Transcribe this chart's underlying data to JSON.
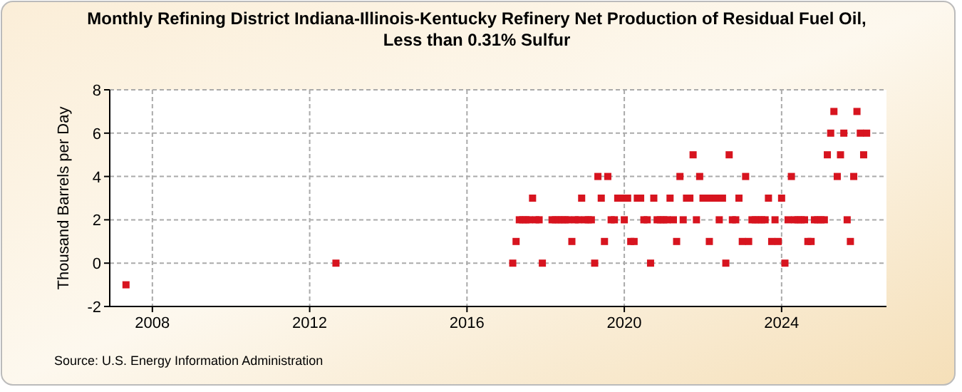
{
  "chart_data": {
    "type": "scatter",
    "title": "Monthly Refining District Indiana-Illinois-Kentucky Refinery Net Production of Residual Fuel Oil, Less than 0.31% Sulfur",
    "ylabel": "Thousand Barrels per Day",
    "annotations": [
      "Source: U.S. Energy Information Administration"
    ],
    "x": [
      "2007-05",
      "2012-09",
      "2017-03",
      "2017-04",
      "2017-05",
      "2017-06",
      "2017-07",
      "2017-08",
      "2017-09",
      "2017-10",
      "2017-11",
      "2017-12",
      "2018-03",
      "2018-04",
      "2018-05",
      "2018-06",
      "2018-07",
      "2018-08",
      "2018-09",
      "2018-10",
      "2018-11",
      "2018-12",
      "2019-01",
      "2019-02",
      "2019-03",
      "2019-04",
      "2019-05",
      "2019-06",
      "2019-07",
      "2019-08",
      "2019-09",
      "2019-10",
      "2019-11",
      "2019-12",
      "2020-01",
      "2020-02",
      "2020-03",
      "2020-04",
      "2020-05",
      "2020-06",
      "2020-07",
      "2020-08",
      "2020-09",
      "2020-10",
      "2020-11",
      "2020-12",
      "2021-01",
      "2021-02",
      "2021-03",
      "2021-04",
      "2021-05",
      "2021-06",
      "2021-07",
      "2021-08",
      "2021-09",
      "2021-10",
      "2021-11",
      "2021-12",
      "2022-01",
      "2022-02",
      "2022-03",
      "2022-04",
      "2022-05",
      "2022-06",
      "2022-07",
      "2022-08",
      "2022-09",
      "2022-10",
      "2022-11",
      "2022-12",
      "2023-01",
      "2023-02",
      "2023-03",
      "2023-04",
      "2023-05",
      "2023-06",
      "2023-07",
      "2023-08",
      "2023-09",
      "2023-10",
      "2023-11",
      "2023-12",
      "2024-01",
      "2024-02",
      "2024-03",
      "2024-04",
      "2024-05",
      "2024-06",
      "2024-07",
      "2024-08",
      "2024-09",
      "2024-10",
      "2024-11",
      "2024-12",
      "2025-01",
      "2025-02",
      "2025-03",
      "2025-04",
      "2025-05",
      "2025-06",
      "2025-07",
      "2025-08",
      "2025-09",
      "2025-10",
      "2025-11",
      "2025-12",
      "2026-01",
      "2026-02",
      "2026-03"
    ],
    "series": [
      {
        "color": "#d7141f",
        "values": [
          -1,
          0,
          0,
          1,
          2,
          2,
          2,
          2,
          3,
          2,
          2,
          0,
          2,
          2,
          2,
          2,
          2,
          2,
          1,
          2,
          2,
          3,
          2,
          2,
          2,
          0,
          4,
          3,
          1,
          4,
          2,
          2,
          3,
          3,
          2,
          3,
          1,
          1,
          3,
          3,
          2,
          2,
          0,
          3,
          2,
          2,
          2,
          2,
          3,
          2,
          1,
          4,
          2,
          3,
          3,
          5,
          2,
          4,
          3,
          3,
          1,
          3,
          3,
          2,
          3,
          0,
          5,
          2,
          2,
          3,
          1,
          4,
          1,
          2,
          2,
          2,
          2,
          2,
          3,
          1,
          2,
          1,
          3,
          0,
          2,
          4,
          2,
          2,
          2,
          2,
          1,
          1,
          2,
          2,
          2,
          2,
          5,
          6,
          7,
          4,
          5,
          6,
          2,
          1,
          4,
          7,
          6,
          5,
          6
        ]
      }
    ],
    "xlim": [
      "2006-12",
      "2026-09"
    ],
    "xticks": [
      "2008",
      "2012",
      "2016",
      "2020",
      "2024"
    ],
    "ylim": [
      -2,
      8
    ],
    "yticks": [
      -2,
      0,
      2,
      4,
      6,
      8
    ],
    "grid": true,
    "marker": "square"
  }
}
